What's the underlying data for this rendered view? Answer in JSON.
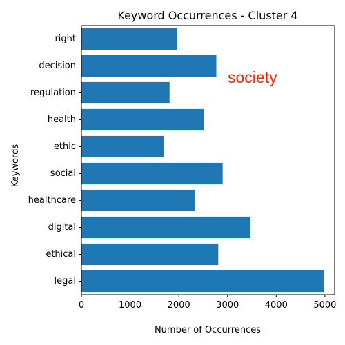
{
  "chart_data": {
    "type": "bar",
    "orientation": "horizontal",
    "title": "Keyword Occurrences - Cluster 4",
    "xlabel": "Number of Occurrences",
    "ylabel": "Keywords",
    "categories": [
      "legal",
      "ethical",
      "digital",
      "healthcare",
      "social",
      "ethic",
      "health",
      "regulation",
      "decision",
      "right"
    ],
    "values": [
      4980,
      2810,
      3470,
      2330,
      2900,
      1690,
      2510,
      1810,
      2770,
      1970
    ],
    "xlim": [
      0,
      5200
    ],
    "xticks": [
      "0",
      "1000",
      "2000",
      "3000",
      "4000",
      "5000"
    ],
    "xtick_values": [
      0,
      1000,
      2000,
      3000,
      4000,
      5000
    ],
    "bar_color": "#1f77b4",
    "grid": false,
    "annotation": {
      "text": "society",
      "color": "#ff2200"
    }
  }
}
